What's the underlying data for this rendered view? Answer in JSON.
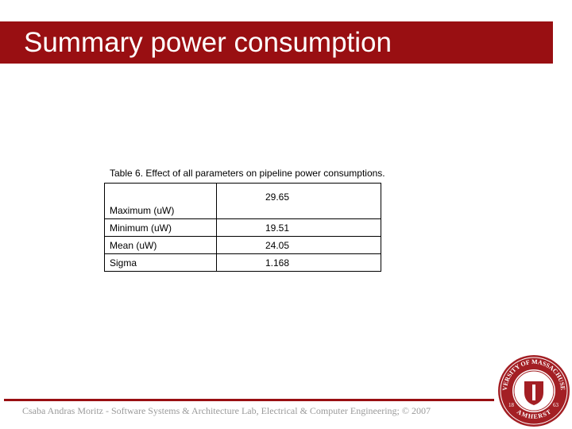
{
  "header": {
    "title": "Summary power consumption"
  },
  "table": {
    "caption": "Table 6. Effect of all parameters on pipeline power consumptions.",
    "rows": [
      [
        "Maximum (uW)",
        "29.65"
      ],
      [
        "Minimum (uW)",
        "19.51"
      ],
      [
        "Mean (uW)",
        "24.05"
      ],
      [
        "Sigma",
        "1.168"
      ]
    ]
  },
  "footer": {
    "text": "Csaba Andras Moritz - Software Systems & Architecture Lab, Electrical & Computer Engineering; © 2007"
  },
  "seal": {
    "top": "UNIVERSITY OF MASSACHUSETTS",
    "bottom": "AMHERST",
    "year_left": "18",
    "year_right": "63"
  }
}
